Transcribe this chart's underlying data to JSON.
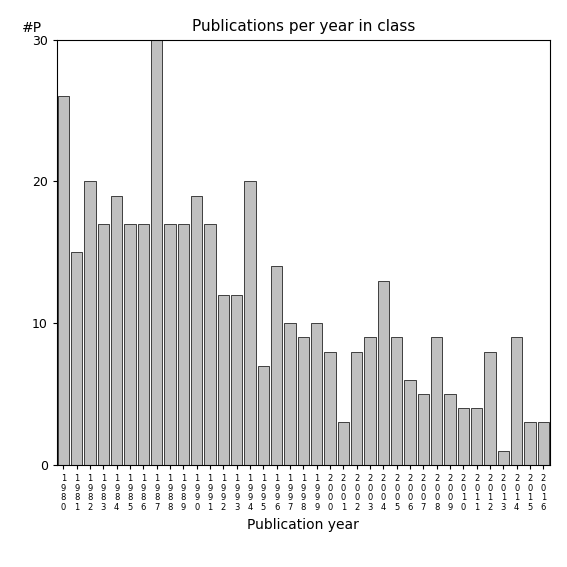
{
  "title": "Publications per year in class",
  "xlabel": "Publication year",
  "ylabel": "#P",
  "bar_color": "#c0c0c0",
  "edge_color": "#000000",
  "years": [
    1980,
    1981,
    1982,
    1983,
    1984,
    1985,
    1986,
    1987,
    1988,
    1989,
    1990,
    1991,
    1992,
    1993,
    1994,
    1995,
    1996,
    1997,
    1998,
    1999,
    2000,
    2001,
    2002,
    2003,
    2004,
    2005,
    2006,
    2007,
    2008,
    2009,
    2010,
    2011,
    2012,
    2013,
    2014,
    2015,
    2016
  ],
  "values": [
    26,
    15,
    20,
    17,
    19,
    17,
    17,
    30,
    17,
    17,
    19,
    17,
    12,
    12,
    20,
    7,
    14,
    10,
    9,
    10,
    8,
    3,
    8,
    9,
    13,
    9,
    6,
    5,
    9,
    5,
    4,
    4,
    8,
    1,
    9,
    3,
    3
  ],
  "ylim": [
    0,
    30
  ],
  "yticks": [
    0,
    10,
    20,
    30
  ],
  "background_color": "#ffffff",
  "title_fontsize": 11,
  "axis_label_fontsize": 10,
  "tick_fontsize": 9
}
